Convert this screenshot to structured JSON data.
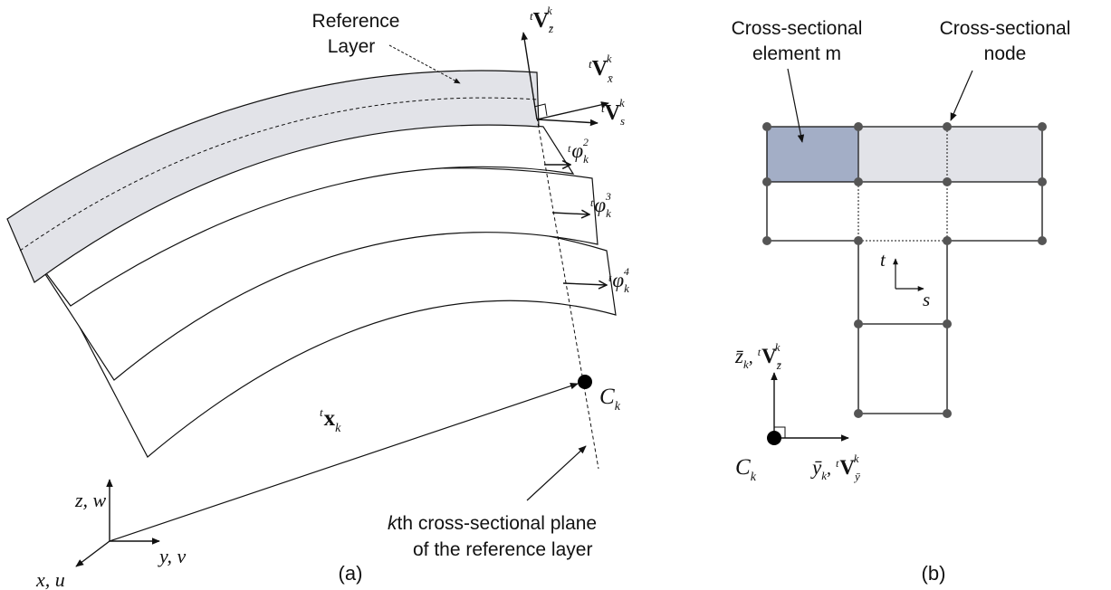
{
  "panel_a": {
    "caption": "(a)",
    "reference_layer": {
      "line1": "Reference",
      "line2": "Layer"
    },
    "plane_label": {
      "line1_prefix": "k",
      "line1_rest": "th cross-sectional plane",
      "line2": "of the reference layer"
    },
    "vectors": {
      "v_z": {
        "pre": "t",
        "main": "V",
        "sub": "z̄",
        "sup": "k"
      },
      "v_x": {
        "pre": "t",
        "main": "V",
        "sub": "x̄",
        "sup": "k"
      },
      "v_s": {
        "pre": "t",
        "main": "V",
        "sub": "s",
        "sup": "k"
      }
    },
    "phi": [
      {
        "pre": "t",
        "main": "φ",
        "sub": "k",
        "sup": "2"
      },
      {
        "pre": "t",
        "main": "φ",
        "sub": "k",
        "sup": "3"
      },
      {
        "pre": "t",
        "main": "φ",
        "sub": "k",
        "sup": "4"
      }
    ],
    "position_vector": {
      "pre": "t",
      "main": "x",
      "sub": "k"
    },
    "centroid": {
      "main": "C",
      "sub": "k"
    },
    "axes": {
      "z": "z, w",
      "y": "y, v",
      "x": "x, u"
    }
  },
  "panel_b": {
    "caption": "(b)",
    "element_label": {
      "line1": "Cross-sectional",
      "line2": "element m"
    },
    "node_label": {
      "line1": "Cross-sectional",
      "line2": "node"
    },
    "local_axes": {
      "t": "t",
      "s": "s"
    },
    "centroid": {
      "main": "C",
      "sub": "k"
    },
    "z_axis": {
      "var": "z̄",
      "sub": "k",
      "pre": "t",
      "main": "V",
      "vsub": "z̄",
      "vsup": "k"
    },
    "y_axis": {
      "var": "ȳ",
      "sub": "k",
      "pre": "t",
      "main": "V",
      "vsub": "ȳ",
      "vsup": "k"
    }
  },
  "colors": {
    "shaded_layer": "#e2e3e8",
    "selected_element": "#a3aec6",
    "node": "#555555",
    "line": "#111111"
  }
}
